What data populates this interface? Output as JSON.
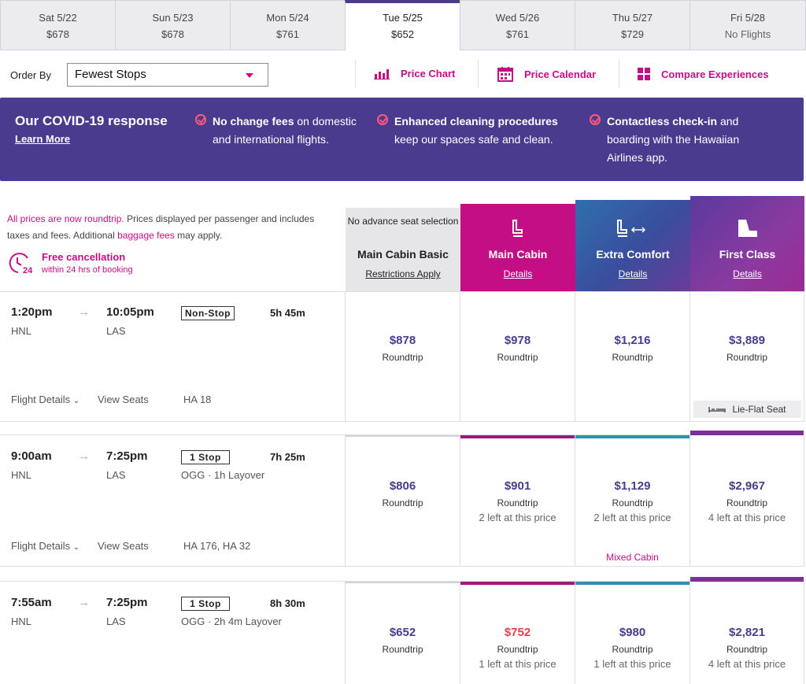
{
  "date_tabs": [
    {
      "date": "Sat 5/22",
      "price": "$678"
    },
    {
      "date": "Sun 5/23",
      "price": "$678"
    },
    {
      "date": "Mon 5/24",
      "price": "$761"
    },
    {
      "date": "Tue 5/25",
      "price": "$652"
    },
    {
      "date": "Wed 5/26",
      "price": "$761"
    },
    {
      "date": "Thu 5/27",
      "price": "$729"
    },
    {
      "date": "Fri 5/28",
      "price": "No Flights"
    }
  ],
  "toolbar": {
    "order_label": "Order By",
    "order_value": "Fewest Stops",
    "price_chart": "Price Chart",
    "price_calendar": "Price Calendar",
    "compare": "Compare Experiences"
  },
  "covid": {
    "title": "Our COVID-19 response",
    "learn_more": "Learn More",
    "items": [
      {
        "bold": "No change fees",
        "rest": " on domestic and international flights."
      },
      {
        "bold": "Enhanced cleaning procedures",
        "rest": " keep our spaces safe and clean."
      },
      {
        "bold": "Contactless check-in",
        "rest": " and boarding with the Hawaiian Airlines app."
      }
    ]
  },
  "info": {
    "pink1": "All prices are now roundtrip.",
    "text1": " Prices displayed per passenger and includes taxes and fees. Additional ",
    "pink2": "baggage fees",
    "text2": " may apply.",
    "fc_title": "Free cancellation",
    "fc_sub": "within 24 hrs of booking",
    "fc_num": "24"
  },
  "cabins": {
    "basic": {
      "note": "No advance seat selection",
      "name": "Main Cabin Basic",
      "link": "Restrictions Apply"
    },
    "main": {
      "name": "Main Cabin",
      "link": "Details"
    },
    "ec": {
      "name": "Extra Comfort",
      "link": "Details"
    },
    "fc": {
      "name": "First Class",
      "link": "Details"
    }
  },
  "flights": [
    {
      "depart": "1:20pm",
      "arrive": "10:05pm",
      "from": "HNL",
      "to": "LAS",
      "stops": "Non-Stop",
      "duration": "5h 45m",
      "layover": "",
      "details": "Flight Details",
      "seats": "View Seats",
      "flight_no": "HA 18",
      "prices": [
        {
          "price": "$878",
          "rt": "Roundtrip",
          "left": ""
        },
        {
          "price": "$978",
          "rt": "Roundtrip",
          "left": ""
        },
        {
          "price": "$1,216",
          "rt": "Roundtrip",
          "left": ""
        },
        {
          "price": "$3,889",
          "rt": "Roundtrip",
          "left": ""
        }
      ],
      "lieflat": "Lie-Flat Seat"
    },
    {
      "depart": "9:00am",
      "arrive": "7:25pm",
      "from": "HNL",
      "to": "LAS",
      "stops": "1 Stop",
      "duration": "7h 25m",
      "layover": "OGG · 1h Layover",
      "details": "Flight Details",
      "seats": "View Seats",
      "flight_no": "HA 176, HA 32",
      "prices": [
        {
          "price": "$806",
          "rt": "Roundtrip",
          "left": ""
        },
        {
          "price": "$901",
          "rt": "Roundtrip",
          "left": "2 left at this price"
        },
        {
          "price": "$1,129",
          "rt": "Roundtrip",
          "left": "2 left at this price"
        },
        {
          "price": "$2,967",
          "rt": "Roundtrip",
          "left": "4 left at this price"
        }
      ],
      "mixed": "Mixed Cabin"
    },
    {
      "depart": "7:55am",
      "arrive": "7:25pm",
      "from": "HNL",
      "to": "LAS",
      "stops": "1 Stop",
      "duration": "8h 30m",
      "layover": "OGG · 2h 4m Layover",
      "prices": [
        {
          "price": "$652",
          "rt": "Roundtrip",
          "left": ""
        },
        {
          "price": "$752",
          "rt": "Roundtrip",
          "left": "1 left at this price"
        },
        {
          "price": "$980",
          "rt": "Roundtrip",
          "left": "1 left at this price"
        },
        {
          "price": "$2,821",
          "rt": "Roundtrip",
          "left": "4 left at this price"
        }
      ]
    }
  ],
  "colors": {
    "brand_purple": "#4b3b8f",
    "brand_magenta": "#c40e86",
    "ec_blue": "#2f8fb8",
    "fc_purple": "#7a2f9a",
    "sale_red": "#e5404f"
  }
}
